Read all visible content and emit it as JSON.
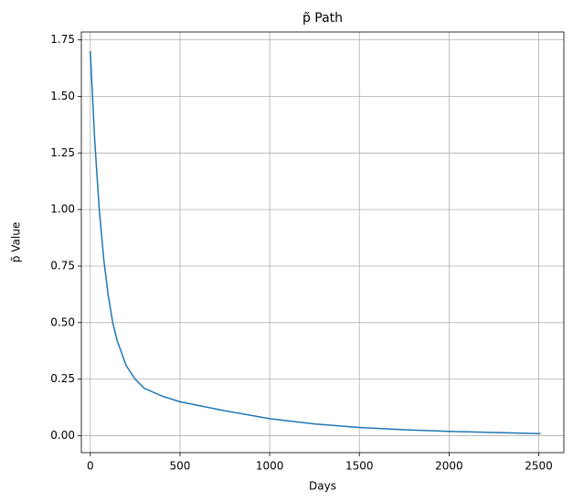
{
  "chart_data": {
    "type": "line",
    "title": "p̃ Path",
    "xlabel": "Days",
    "ylabel": "p̃ Value",
    "x": [
      0,
      25,
      50,
      75,
      100,
      125,
      150,
      200,
      250,
      300,
      400,
      500,
      750,
      1000,
      1250,
      1500,
      1750,
      2000,
      2250,
      2510
    ],
    "values": [
      1.7,
      1.3,
      1.0,
      0.78,
      0.62,
      0.5,
      0.42,
      0.31,
      0.25,
      0.21,
      0.175,
      0.15,
      0.11,
      0.075,
      0.052,
      0.036,
      0.026,
      0.019,
      0.014,
      0.009
    ],
    "color": "#1f77b4",
    "xlim": [
      -50,
      2640
    ],
    "xticks": [
      0,
      500,
      1000,
      1500,
      2000,
      2500
    ],
    "ylim": [
      -0.075,
      1.785
    ],
    "yticks": [
      {
        "value": 0,
        "label": "0.00"
      },
      {
        "value": 0.25,
        "label": "0.25"
      },
      {
        "value": 0.5,
        "label": "0.50"
      },
      {
        "value": 0.75,
        "label": "0.75"
      },
      {
        "value": 1,
        "label": "1.00"
      },
      {
        "value": 1.25,
        "label": "1.25"
      },
      {
        "value": 1.5,
        "label": "1.50"
      },
      {
        "value": 1.75,
        "label": "1.75"
      }
    ],
    "grid": true
  }
}
